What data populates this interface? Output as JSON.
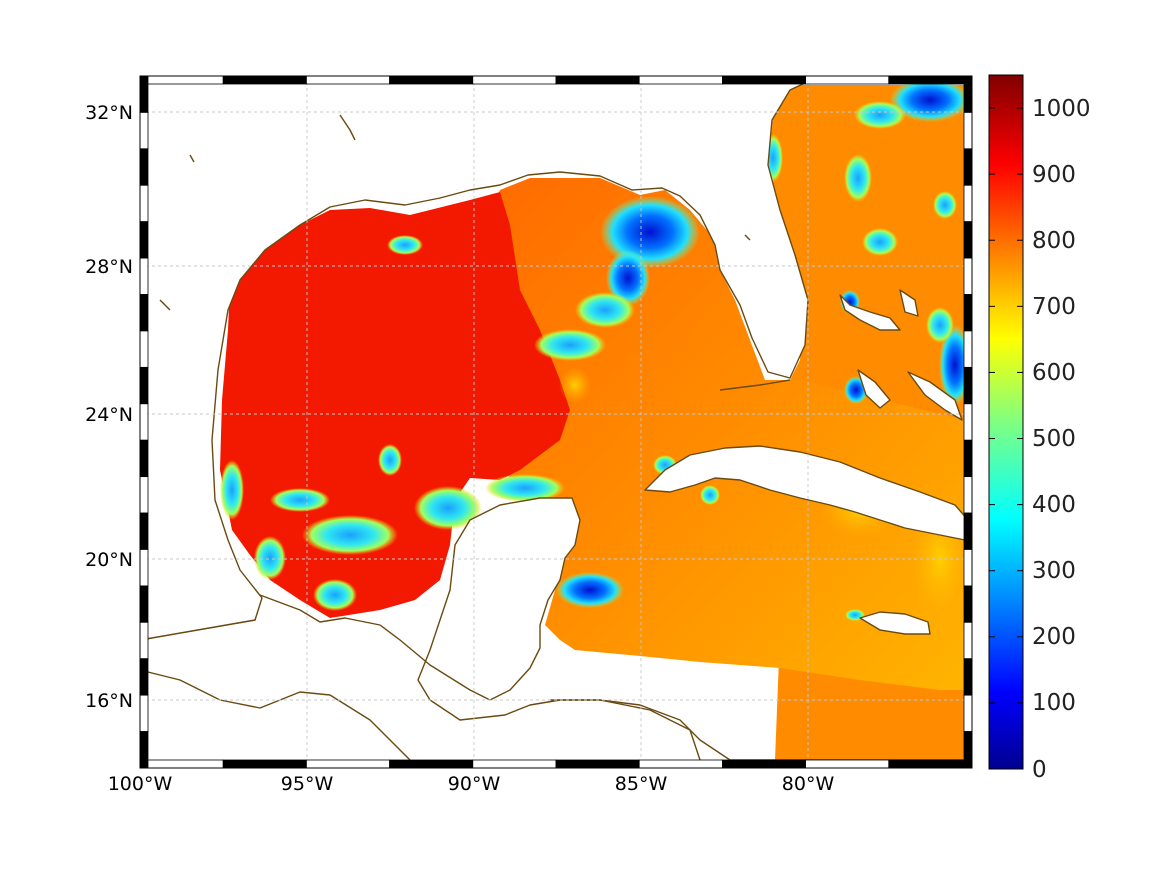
{
  "map": {
    "region": "Gulf of Mexico",
    "lon_ticks": [
      "100°W",
      "95°W",
      "90°W",
      "85°W",
      "80°W"
    ],
    "lat_ticks": [
      "32°N",
      "28°N",
      "24°N",
      "20°N",
      "16°N"
    ],
    "colorbar": {
      "colormap": "jet",
      "range": [
        0,
        1050
      ],
      "tick_labels": [
        "1000",
        "900",
        "800",
        "700",
        "600",
        "500",
        "400",
        "300",
        "200",
        "100",
        "0"
      ]
    },
    "colors": {
      "coastline": "#6b4a10",
      "gulf_west": "#f21a00",
      "gulf_east": "#ff6a00",
      "atlantic": "#ff8c00",
      "caribbean": "#ffb000",
      "low_values": "#0000c8",
      "mid_values": "#00d0ff"
    }
  },
  "chart_data": {
    "type": "heatmap",
    "title": "",
    "xlabel": "",
    "ylabel": "",
    "xlim": [
      -100,
      -75
    ],
    "ylim": [
      14,
      33
    ],
    "colorbar_range": [
      0,
      1050
    ],
    "colorbar_ticks": [
      0,
      100,
      200,
      300,
      400,
      500,
      600,
      700,
      800,
      900,
      1000
    ]
  }
}
